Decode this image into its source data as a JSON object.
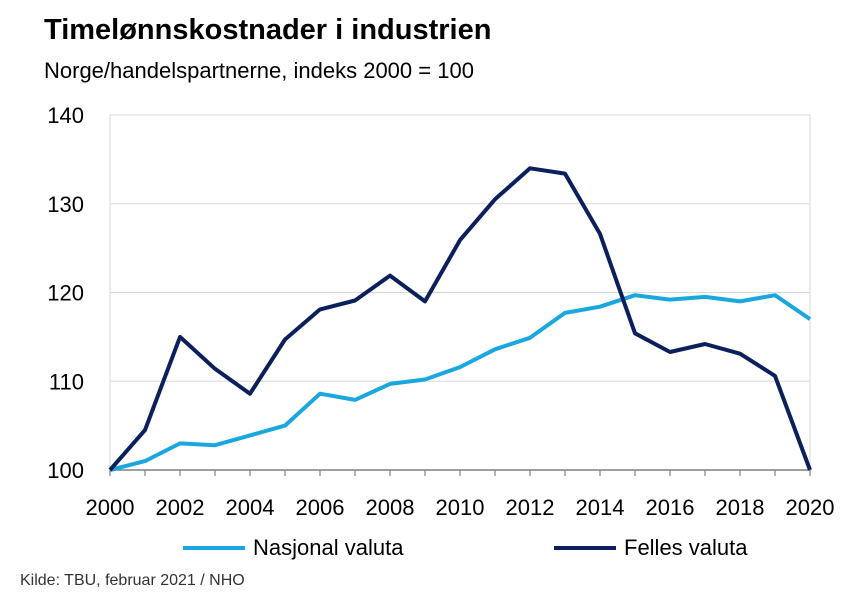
{
  "colors": {
    "nasjonal": "#1aa7e0",
    "felles": "#0b1f5c",
    "grid": "#d9d9d9",
    "axis": "#808080"
  },
  "chart_data": {
    "type": "line",
    "title": "Timelønnskostnader i industrien",
    "subtitle": "Norge/handelspartnerne,  indeks 2000 = 100",
    "source": "Kilde: TBU, februar 2021  / NHO",
    "x": [
      2000,
      2001,
      2002,
      2003,
      2004,
      2005,
      2006,
      2007,
      2008,
      2009,
      2010,
      2011,
      2012,
      2013,
      2014,
      2015,
      2016,
      2017,
      2018,
      2019,
      2020
    ],
    "xticks": [
      "2000",
      "2002",
      "2004",
      "2006",
      "2008",
      "2010",
      "2012",
      "2014",
      "2016",
      "2018",
      "2020"
    ],
    "yticks": [
      "100",
      "110",
      "120",
      "130",
      "140"
    ],
    "ylim": [
      100,
      140
    ],
    "xlim": [
      2000,
      2020
    ],
    "grid": true,
    "legend_position": "bottom",
    "series": [
      {
        "name": "Nasjonal valuta",
        "color": "#1aa7e0",
        "values": [
          100,
          101,
          103,
          102.8,
          103.9,
          105,
          108.6,
          107.9,
          109.7,
          110.2,
          111.6,
          113.6,
          114.9,
          117.7,
          118.4,
          119.7,
          119.2,
          119.5,
          119,
          119.7,
          117
        ]
      },
      {
        "name": "Felles valuta",
        "color": "#0b1f5c",
        "values": [
          100,
          104.5,
          115,
          111.4,
          108.6,
          114.7,
          118.1,
          119.1,
          121.9,
          119,
          125.9,
          130.5,
          134,
          133.4,
          126.6,
          115.4,
          113.3,
          114.2,
          113.1,
          110.6,
          100
        ]
      }
    ]
  }
}
